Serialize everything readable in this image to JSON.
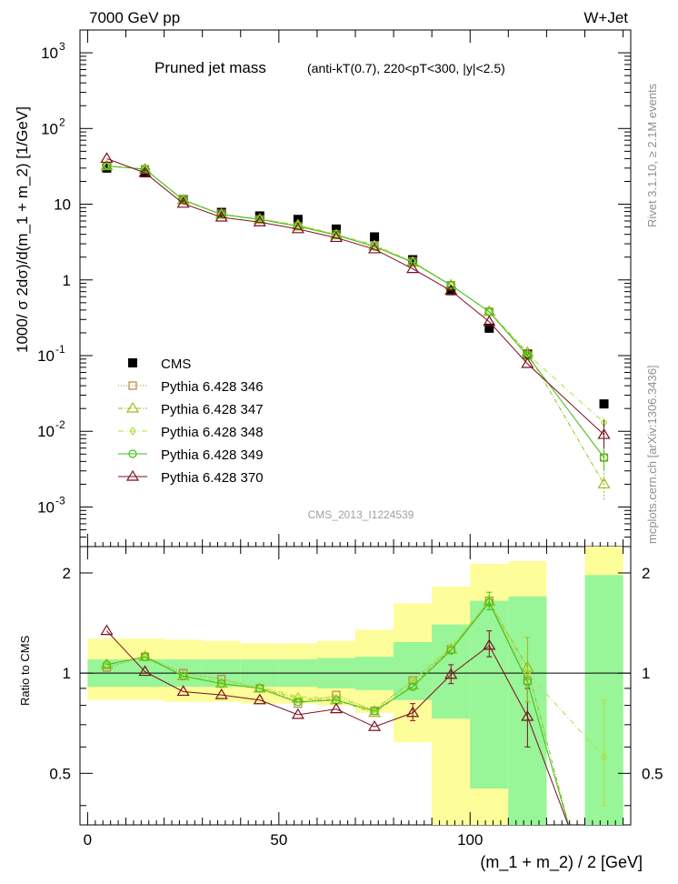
{
  "header": {
    "energy": "7000 GeV pp",
    "process": "W+Jet",
    "title_main": "Pruned jet mass",
    "title_detail": "(anti-kT(0.7), 220<pT<300, |y|<2.5)",
    "side_right_top": "Rivet 3.1.10, ≥ 2.1M events",
    "side_right_bottom": "mcplots.cern.ch [arXiv:1306.3436]",
    "watermark": "CMS_2013_I1224539"
  },
  "colors": {
    "data": "#000000",
    "p346": "#b8863b",
    "p347": "#9dbb1a",
    "p348": "#aee03a",
    "p349": "#3ec11a",
    "p370": "#7b0f1e",
    "band_green": "#98f598",
    "band_yellow": "#fdfd9a"
  },
  "chart_data": [
    {
      "type": "scatter",
      "name": "main",
      "ylabel": "1000/ σ 2dσ)/d(m_1 + m_2) [1/GeV]",
      "xlim": [
        -2,
        142
      ],
      "ylim": [
        0.0003,
        2000
      ],
      "yscale": "log",
      "yticks": [
        {
          "v": 0.001,
          "base": "10",
          "exp": "-3"
        },
        {
          "v": 0.01,
          "base": "10",
          "exp": "-2"
        },
        {
          "v": 0.1,
          "base": "10",
          "exp": "-1"
        },
        {
          "v": 1,
          "base": "1",
          "exp": ""
        },
        {
          "v": 10,
          "base": "10",
          "exp": ""
        },
        {
          "v": 100,
          "base": "10",
          "exp": "2"
        },
        {
          "v": 1000,
          "base": "10",
          "exp": "3"
        }
      ],
      "x": [
        5,
        15,
        25,
        35,
        45,
        55,
        65,
        75,
        85,
        95,
        105,
        115,
        135
      ],
      "series": [
        {
          "name": "CMS",
          "key": "data",
          "marker": "square",
          "values": [
            30,
            26,
            11.5,
            7.8,
            7.0,
            6.3,
            4.7,
            3.7,
            1.85,
            0.72,
            0.23,
            0.105,
            0.023
          ]
        },
        {
          "name": "Pythia 6.428 346",
          "key": "p346",
          "marker": "open-square",
          "dash": "1,2",
          "values": [
            32,
            29,
            11.5,
            7.5,
            6.3,
            5.1,
            4.0,
            2.8,
            1.75,
            0.85,
            0.38,
            0.1,
            0.0045
          ]
        },
        {
          "name": "Pythia 6.428 347",
          "key": "p347",
          "marker": "open-triangle",
          "dash": "5,2,1,2",
          "values": [
            32,
            29,
            11.3,
            7.3,
            6.3,
            5.3,
            3.9,
            2.8,
            1.7,
            0.85,
            0.38,
            0.11,
            0.002
          ]
        },
        {
          "name": "Pythia 6.428 348",
          "key": "p348",
          "marker": "open-diamond",
          "dash": "6,3,1,3",
          "values": [
            32,
            29,
            11.5,
            7.3,
            6.4,
            5.3,
            4.0,
            2.9,
            1.75,
            0.85,
            0.38,
            0.105,
            0.013
          ]
        },
        {
          "name": "Pythia 6.428 349",
          "key": "p349",
          "marker": "open-circle",
          "dash": "",
          "values": [
            32,
            29,
            11.3,
            7.3,
            6.3,
            5.1,
            3.9,
            2.75,
            1.7,
            0.85,
            0.38,
            0.1,
            0.0045
          ]
        },
        {
          "name": "Pythia 6.428 370",
          "key": "p370",
          "marker": "open-triangle",
          "dash": "",
          "values": [
            40,
            26,
            10.2,
            6.7,
            5.8,
            4.7,
            3.6,
            2.55,
            1.4,
            0.72,
            0.28,
            0.078,
            0.009
          ]
        }
      ]
    },
    {
      "type": "scatter",
      "name": "ratio",
      "ylabel": "Ratio to CMS",
      "xlabel": "(m_1 + m_2) / 2 [GeV]",
      "xlim": [
        -2,
        142
      ],
      "ylim": [
        0.35,
        2.4
      ],
      "yscale": "log",
      "yticks": [
        0.5,
        1,
        2
      ],
      "xticks": [
        0,
        50,
        100
      ],
      "bands": [
        {
          "lo": 0,
          "hi": 10,
          "green": [
            0.91,
            1.1
          ],
          "yellow": [
            0.83,
            1.27
          ]
        },
        {
          "lo": 10,
          "hi": 20,
          "green": [
            0.91,
            1.1
          ],
          "yellow": [
            0.83,
            1.27
          ]
        },
        {
          "lo": 20,
          "hi": 30,
          "green": [
            0.91,
            1.1
          ],
          "yellow": [
            0.82,
            1.26
          ]
        },
        {
          "lo": 30,
          "hi": 40,
          "green": [
            0.91,
            1.1
          ],
          "yellow": [
            0.82,
            1.25
          ]
        },
        {
          "lo": 40,
          "hi": 50,
          "green": [
            0.91,
            1.1
          ],
          "yellow": [
            0.81,
            1.23
          ]
        },
        {
          "lo": 50,
          "hi": 60,
          "green": [
            0.91,
            1.1
          ],
          "yellow": [
            0.81,
            1.23
          ]
        },
        {
          "lo": 60,
          "hi": 70,
          "green": [
            0.9,
            1.11
          ],
          "yellow": [
            0.8,
            1.25
          ]
        },
        {
          "lo": 70,
          "hi": 80,
          "green": [
            0.89,
            1.12
          ],
          "yellow": [
            0.76,
            1.35
          ]
        },
        {
          "lo": 80,
          "hi": 90,
          "green": [
            0.83,
            1.24
          ],
          "yellow": [
            0.62,
            1.62
          ]
        },
        {
          "lo": 90,
          "hi": 100,
          "green": [
            0.73,
            1.4
          ],
          "yellow": [
            0.35,
            1.82
          ]
        },
        {
          "lo": 100,
          "hi": 110,
          "green": [
            0.45,
            1.65
          ],
          "yellow": [
            0.35,
            2.13
          ]
        },
        {
          "lo": 110,
          "hi": 120,
          "green": [
            0.35,
            1.7
          ],
          "yellow": [
            0.35,
            2.17
          ]
        },
        {
          "lo": 130,
          "hi": 140,
          "green": [
            0.35,
            1.97
          ],
          "yellow": [
            0.35,
            2.4
          ]
        }
      ],
      "series": [
        {
          "name": "Pythia 6.428 346",
          "key": "p346",
          "marker": "open-square",
          "dash": "1,2",
          "values": [
            1.04,
            1.12,
            1.0,
            0.96,
            0.9,
            0.81,
            0.86,
            0.77,
            0.95,
            1.18,
            1.65,
            0.95,
            null
          ]
        },
        {
          "name": "Pythia 6.428 347",
          "key": "p347",
          "marker": "open-triangle",
          "dash": "5,2,1,2",
          "values": [
            1.06,
            1.12,
            0.98,
            0.93,
            0.9,
            0.84,
            0.83,
            0.76,
            0.92,
            1.18,
            1.64,
            1.04,
            null
          ]
        },
        {
          "name": "Pythia 6.428 348",
          "key": "p348",
          "marker": "open-diamond",
          "dash": "6,3,1,3",
          "values": [
            1.06,
            1.11,
            0.99,
            0.94,
            0.91,
            0.85,
            0.84,
            0.78,
            0.95,
            1.2,
            1.65,
            1.0,
            0.56
          ]
        },
        {
          "name": "Pythia 6.428 349",
          "key": "p349",
          "marker": "open-circle",
          "dash": "",
          "values": [
            1.06,
            1.12,
            0.98,
            0.93,
            0.9,
            0.82,
            0.83,
            0.77,
            0.91,
            1.17,
            1.63,
            0.94,
            null
          ]
        },
        {
          "name": "Pythia 6.428 370",
          "key": "p370",
          "marker": "open-triangle",
          "dash": "",
          "values": [
            1.34,
            1.01,
            0.88,
            0.86,
            0.83,
            0.75,
            0.78,
            0.69,
            0.76,
            0.99,
            1.21,
            0.74,
            null
          ]
        }
      ]
    }
  ]
}
